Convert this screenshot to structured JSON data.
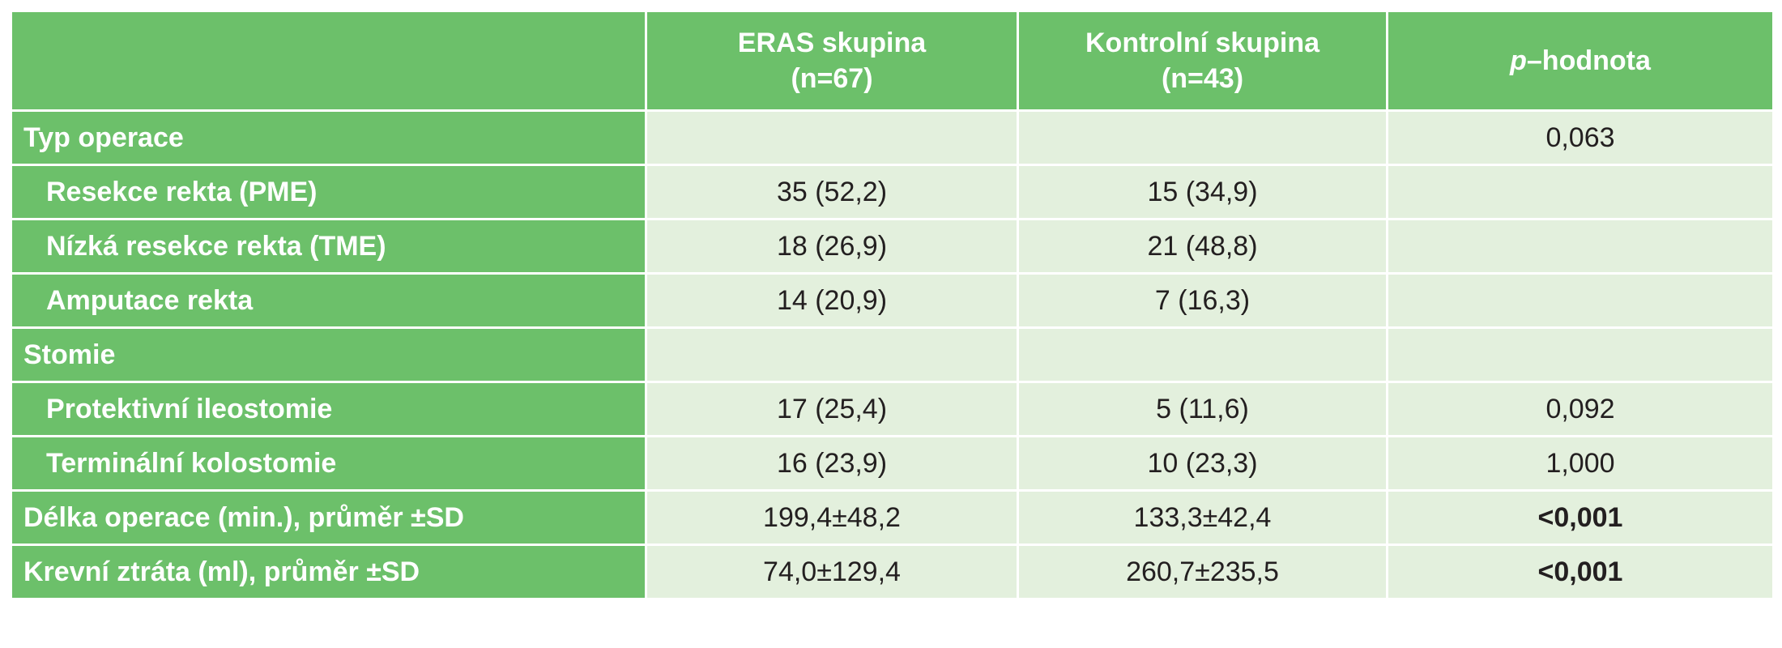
{
  "header": {
    "col1_line1": "ERAS skupina",
    "col1_line2": "(n=67)",
    "col2_line1": "Kontrolní skupina",
    "col2_line2": "(n=43)",
    "col3_italic": "p",
    "col3_rest": "–hodnota"
  },
  "rows": [
    {
      "label": "Typ operace",
      "eras": "",
      "control": "",
      "p": "0,063"
    },
    {
      "label": "Resekce rekta (PME)",
      "eras": "35 (52,2)",
      "control": "15 (34,9)",
      "p": ""
    },
    {
      "label": "Nízká resekce rekta (TME)",
      "eras": "18 (26,9)",
      "control": "21 (48,8)",
      "p": ""
    },
    {
      "label": "Amputace rekta",
      "eras": "14 (20,9)",
      "control": "7 (16,3)",
      "p": ""
    },
    {
      "label": "Stomie",
      "eras": "",
      "control": "",
      "p": ""
    },
    {
      "label": "Protektivní ileostomie",
      "eras": "17 (25,4)",
      "control": "5 (11,6)",
      "p": "0,092"
    },
    {
      "label": "Terminální kolostomie",
      "eras": "16 (23,9)",
      "control": "10 (23,3)",
      "p": "1,000"
    },
    {
      "label": "Délka operace (min.), průměr ±SD",
      "eras": "199,4±48,2",
      "control": "133,3±42,4",
      "p": "<0,001"
    },
    {
      "label": "Krevní ztráta (ml), průměr ±SD",
      "eras": "74,0±129,4",
      "control": "260,7±235,5",
      "p": "<0,001"
    }
  ],
  "colors": {
    "header_green": "#6cc06a",
    "cell_light_green": "#e3f0dd",
    "text_dark": "#231f20",
    "text_white": "#ffffff"
  }
}
